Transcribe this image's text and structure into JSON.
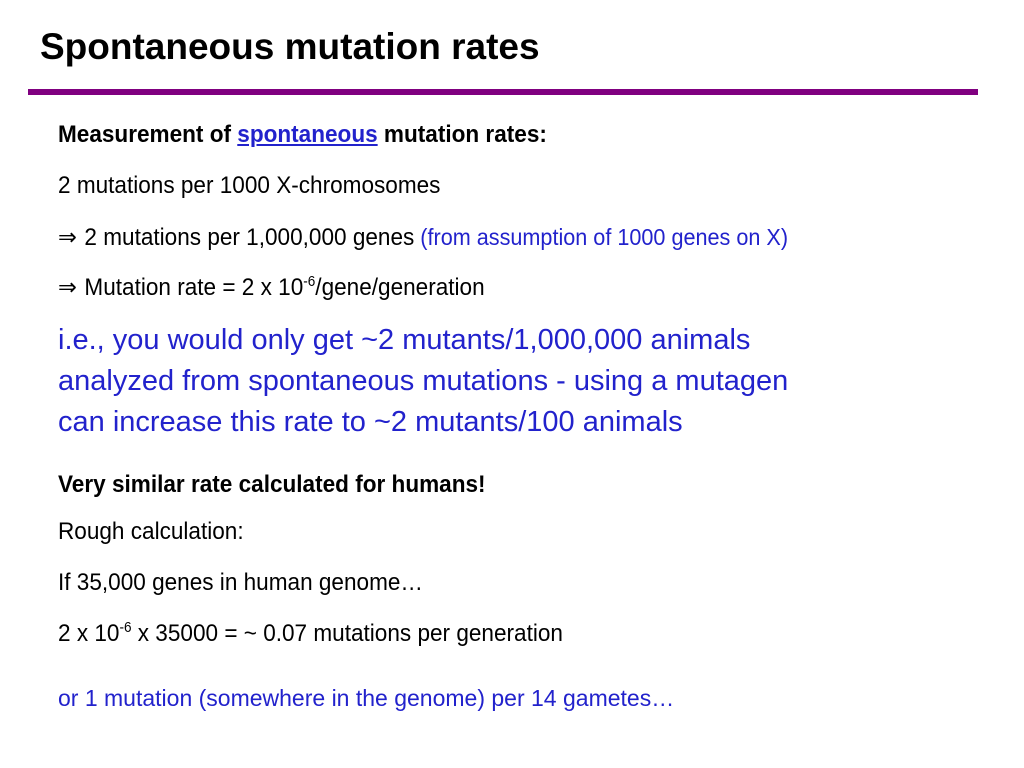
{
  "title": "Spontaneous mutation rates",
  "colors": {
    "rule": "#800080",
    "accent": "#2222cc",
    "text": "#000000"
  },
  "measurement": {
    "prefix": "Measurement of ",
    "link": "spontaneous",
    "suffix": " mutation rates:"
  },
  "line1": "2 mutations per 1000 X-chromosomes",
  "line2": {
    "symbol": "⇒",
    "text": "2 mutations per 1,000,000 genes",
    "note": " (from assumption of 1000 genes on X)"
  },
  "line3": {
    "symbol": "⇒",
    "text_pre": "Mutation rate = 2 x 10",
    "sup": "-6",
    "text_post": "/gene/generation"
  },
  "ie_lines": [
    "i.e., you would only get ~2 mutants/1,000,000 animals",
    "analyzed from spontaneous mutations - using a mutagen",
    "can increase this rate to ~2 mutants/100 animals"
  ],
  "humans_heading": "Very similar rate calculated for humans!",
  "rough": "Rough calculation:",
  "genes_line": "If 35,000 genes in human genome…",
  "calc": {
    "pre": "2 x 10",
    "sup": "-6",
    "post": " x 35000 = ~ 0.07 mutations per generation"
  },
  "conclusion": "or 1 mutation (somewhere in the genome) per 14 gametes…"
}
